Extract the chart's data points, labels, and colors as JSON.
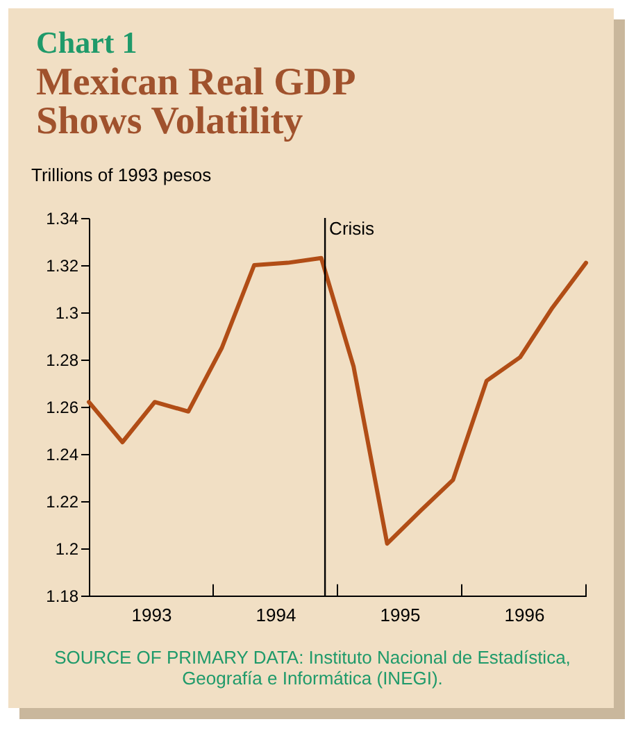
{
  "chart_data": {
    "type": "line",
    "title": "Chart 1",
    "subtitle": "Mexican Real GDP Shows Volatility",
    "ylabel": "Trillions of 1993 pesos",
    "x": [
      1993.0,
      1993.27,
      1993.53,
      1993.8,
      1994.07,
      1994.33,
      1994.6,
      1994.87,
      1995.13,
      1995.4,
      1995.67,
      1995.93,
      1996.2,
      1996.47,
      1996.73,
      1997.0
    ],
    "series": [
      {
        "color": "#b14d16",
        "values": [
          1.262,
          1.245,
          1.262,
          1.258,
          1.285,
          1.32,
          1.321,
          1.323,
          1.277,
          1.202,
          1.216,
          1.229,
          1.271,
          1.281,
          1.302,
          1.321
        ]
      }
    ],
    "xlim": [
      1993,
      1997
    ],
    "xticks": [
      {
        "value": 1993.5,
        "label": "1993"
      },
      {
        "value": 1994.5,
        "label": "1994"
      },
      {
        "value": 1995.5,
        "label": "1995"
      },
      {
        "value": 1996.5,
        "label": "1996"
      }
    ],
    "ylim": [
      1.18,
      1.34
    ],
    "yticks": [
      1.18,
      1.2,
      1.22,
      1.24,
      1.26,
      1.28,
      1.3,
      1.32,
      1.34
    ],
    "ref_lines": [
      {
        "axis": "x",
        "value": 1994.9,
        "label": "Crisis",
        "color": "#000000"
      }
    ],
    "annotations": [
      "SOURCE OF PRIMARY DATA: Instituto Nacional de Estadística, Geografía e Informática (INEGI)."
    ],
    "grid": false,
    "legend": false,
    "marker": "none",
    "line_style": "solid"
  }
}
